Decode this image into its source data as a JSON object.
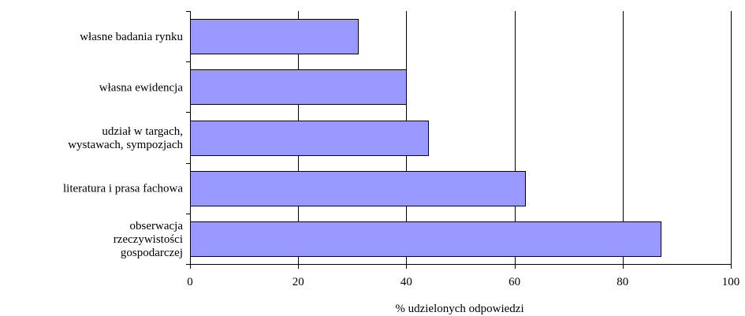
{
  "chart_data": {
    "type": "bar",
    "orientation": "horizontal",
    "categories": [
      [
        "własne badania rynku"
      ],
      [
        "własna ewidencja"
      ],
      [
        "udział w targach,",
        "wystawach, sympozjach"
      ],
      [
        "literatura i prasa fachowa"
      ],
      [
        "obserwacja",
        "rzeczywistości",
        "gospodarczej"
      ]
    ],
    "values": [
      31,
      40,
      44,
      62,
      87
    ],
    "xlabel": "% udzielonych odpowiedzi",
    "xlim": [
      0,
      100
    ],
    "xticks": [
      0,
      20,
      40,
      60,
      80,
      100
    ],
    "grid": "vertical",
    "legend": "none",
    "colors": {
      "bar_fill": "#9999ff",
      "bar_stroke": "#000000",
      "grid": "#000000",
      "axis": "#000000"
    }
  }
}
